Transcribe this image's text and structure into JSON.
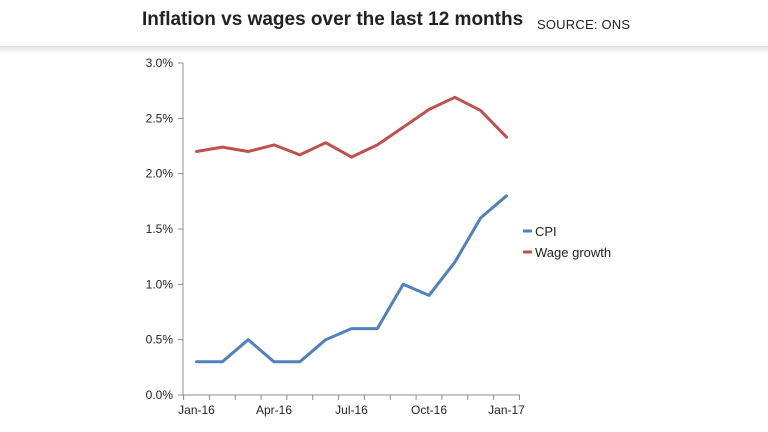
{
  "header": {
    "title": "Inflation vs wages over the last 12 months",
    "source": "SOURCE: ONS"
  },
  "chart_data": {
    "type": "line",
    "title": "Inflation vs wages over the last 12 months",
    "xlabel": "",
    "ylabel": "",
    "x": [
      "Jan-16",
      "Feb-16",
      "Mar-16",
      "Apr-16",
      "May-16",
      "Jun-16",
      "Jul-16",
      "Aug-16",
      "Sep-16",
      "Oct-16",
      "Nov-16",
      "Dec-16",
      "Jan-17"
    ],
    "x_tick_labels": [
      "Jan-16",
      "Apr-16",
      "Jul-16",
      "Oct-16",
      "Jan-17"
    ],
    "y_tick_labels": [
      "0.0%",
      "0.5%",
      "1.0%",
      "1.5%",
      "2.0%",
      "2.5%",
      "3.0%"
    ],
    "ylim": [
      0,
      3.0
    ],
    "grid": false,
    "legend_position": "right",
    "series": [
      {
        "name": "CPI",
        "color": "#4f81bd",
        "values": [
          0.3,
          0.3,
          0.5,
          0.3,
          0.3,
          0.5,
          0.6,
          0.6,
          1.0,
          0.9,
          1.2,
          1.6,
          1.8
        ]
      },
      {
        "name": "Wage growth",
        "color": "#c0504d",
        "values": [
          2.2,
          2.24,
          2.2,
          2.26,
          2.17,
          2.28,
          2.15,
          2.26,
          2.42,
          2.58,
          2.69,
          2.57,
          2.33
        ]
      }
    ]
  }
}
